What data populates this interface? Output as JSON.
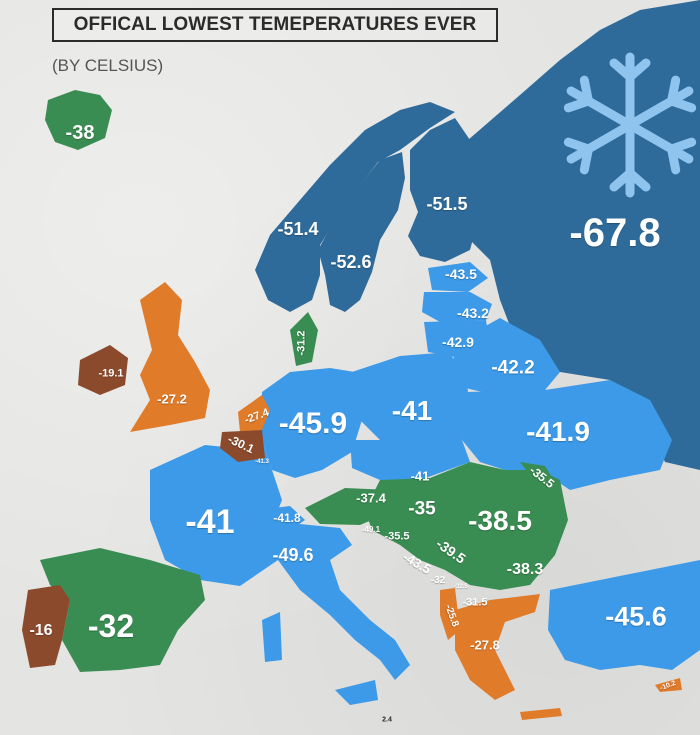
{
  "title": "OFFICAL LOWEST TEMEPERATURES EVER",
  "subtitle": "(BY CELSIUS)",
  "colors": {
    "background": "#e4e4e2",
    "below_minus_50": "#2f6b9a",
    "minus_40_to_50": "#3c9ae8",
    "minus_30_to_40": "#3a8d52",
    "minus_20_to_30": "#e07b2a",
    "above_minus_20": "#8c4a2c",
    "snowflake": "#8fc4ef"
  },
  "icons": {
    "snowflake": "snowflake-icon"
  },
  "regions": [
    {
      "id": "iceland",
      "label": "-38"
    },
    {
      "id": "norway",
      "label": "-51.4"
    },
    {
      "id": "sweden",
      "label": "-52.6"
    },
    {
      "id": "finland",
      "label": "-51.5"
    },
    {
      "id": "russia",
      "label": "-67.8"
    },
    {
      "id": "estonia",
      "label": "-43.5"
    },
    {
      "id": "latvia",
      "label": "-43.2"
    },
    {
      "id": "lithuania",
      "label": "-42.9"
    },
    {
      "id": "belarus",
      "label": "-42.2"
    },
    {
      "id": "denmark",
      "label": "-31.2"
    },
    {
      "id": "ireland",
      "label": "-19.1"
    },
    {
      "id": "united-kingdom",
      "label": "-27.2"
    },
    {
      "id": "netherlands",
      "label": "-27.4"
    },
    {
      "id": "belgium",
      "label": "-30.1"
    },
    {
      "id": "luxembourg",
      "label": "-41.3"
    },
    {
      "id": "germany",
      "label": "-45.9"
    },
    {
      "id": "poland",
      "label": "-41"
    },
    {
      "id": "ukraine",
      "label": "-41.9"
    },
    {
      "id": "czechia",
      "label": "-42.2"
    },
    {
      "id": "slovakia",
      "label": "-41"
    },
    {
      "id": "moldova",
      "label": "-35.5"
    },
    {
      "id": "austria",
      "label": "-37.4"
    },
    {
      "id": "hungary",
      "label": "-35"
    },
    {
      "id": "romania",
      "label": "-38.5"
    },
    {
      "id": "france",
      "label": "-41"
    },
    {
      "id": "switzerland",
      "label": "-41.8"
    },
    {
      "id": "slovenia",
      "label": "-49.1"
    },
    {
      "id": "croatia",
      "label": "-35.5"
    },
    {
      "id": "serbia",
      "label": "-39.5"
    },
    {
      "id": "bosnia",
      "label": "-43.5"
    },
    {
      "id": "bulgaria",
      "label": "-38.3"
    },
    {
      "id": "montenegro",
      "label": "-32"
    },
    {
      "id": "kosovo",
      "label": "-32.5"
    },
    {
      "id": "north-macedonia",
      "label": "-31.5"
    },
    {
      "id": "albania",
      "label": "-25.8"
    },
    {
      "id": "italy",
      "label": "-49.6"
    },
    {
      "id": "greece",
      "label": "-27.8"
    },
    {
      "id": "turkey",
      "label": "-45.6"
    },
    {
      "id": "spain",
      "label": "-32"
    },
    {
      "id": "portugal",
      "label": "-16"
    },
    {
      "id": "cyprus",
      "label": "-10.2"
    },
    {
      "id": "malta",
      "label": "2.4"
    }
  ]
}
